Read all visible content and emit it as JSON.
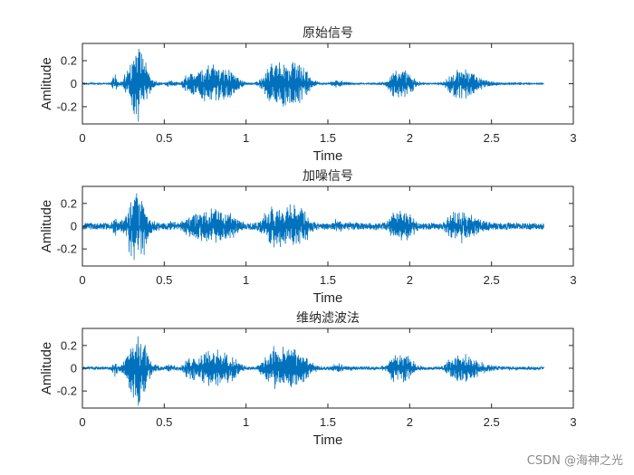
{
  "chart_data": [
    {
      "type": "line",
      "title": "原始信号",
      "xlabel": "Time",
      "ylabel": "Amlitude",
      "xlim": [
        0,
        3
      ],
      "ylim": [
        -0.35,
        0.35
      ],
      "xticks": [
        0,
        0.5,
        1,
        1.5,
        2,
        2.5,
        3
      ],
      "xtick_labels": [
        "0",
        "0.5",
        "1",
        "1.5",
        "2",
        "2.5",
        "3"
      ],
      "yticks": [
        -0.2,
        0,
        0.2
      ],
      "ytick_labels": [
        "-0.2",
        "0",
        "0.2"
      ],
      "color": "#0072bd",
      "grid": false,
      "signal_end": 2.82,
      "noise_floor": 0.004,
      "envelope_x": [
        0,
        0.17,
        0.2,
        0.22,
        0.25,
        0.28,
        0.3,
        0.33,
        0.35,
        0.38,
        0.4,
        0.43,
        0.46,
        0.5,
        0.53,
        0.6,
        0.63,
        0.7,
        0.75,
        0.8,
        0.85,
        0.9,
        0.95,
        1.0,
        1.05,
        1.1,
        1.15,
        1.2,
        1.25,
        1.3,
        1.35,
        1.4,
        1.45,
        1.5,
        1.55,
        1.6,
        1.65,
        1.7,
        1.75,
        1.8,
        1.85,
        1.9,
        1.95,
        2.0,
        2.05,
        2.1,
        2.15,
        2.2,
        2.25,
        2.3,
        2.35,
        2.4,
        2.45,
        2.5,
        2.55,
        2.82
      ],
      "envelope_y": [
        0.005,
        0.005,
        0.09,
        0.02,
        0.05,
        0.18,
        0.27,
        0.32,
        0.34,
        0.26,
        0.12,
        0.04,
        0.02,
        0.01,
        0.03,
        0.01,
        0.08,
        0.12,
        0.16,
        0.17,
        0.16,
        0.14,
        0.06,
        0.01,
        0.006,
        0.06,
        0.19,
        0.2,
        0.2,
        0.19,
        0.16,
        0.05,
        0.01,
        0.006,
        0.04,
        0.02,
        0.01,
        0.005,
        0.005,
        0.01,
        0.02,
        0.12,
        0.14,
        0.1,
        0.02,
        0.005,
        0.005,
        0.01,
        0.1,
        0.14,
        0.13,
        0.09,
        0.04,
        0.02,
        0.01,
        0.004
      ]
    },
    {
      "type": "line",
      "title": "加噪信号",
      "xlabel": "Time",
      "ylabel": "Amlitude",
      "xlim": [
        0,
        3
      ],
      "ylim": [
        -0.35,
        0.35
      ],
      "xticks": [
        0,
        0.5,
        1,
        1.5,
        2,
        2.5,
        3
      ],
      "xtick_labels": [
        "0",
        "0.5",
        "1",
        "1.5",
        "2",
        "2.5",
        "3"
      ],
      "yticks": [
        -0.2,
        0,
        0.2
      ],
      "ytick_labels": [
        "-0.2",
        "0",
        "0.2"
      ],
      "color": "#0072bd",
      "grid": false,
      "signal_end": 2.82,
      "noise_floor": 0.028,
      "envelope_x": [
        0,
        0.17,
        0.2,
        0.22,
        0.25,
        0.28,
        0.3,
        0.33,
        0.35,
        0.38,
        0.4,
        0.43,
        0.46,
        0.5,
        0.53,
        0.6,
        0.63,
        0.7,
        0.75,
        0.8,
        0.85,
        0.9,
        0.95,
        1.0,
        1.05,
        1.1,
        1.15,
        1.2,
        1.25,
        1.3,
        1.35,
        1.4,
        1.45,
        1.5,
        1.55,
        1.6,
        1.65,
        1.7,
        1.75,
        1.8,
        1.85,
        1.9,
        1.95,
        2.0,
        2.05,
        2.1,
        2.15,
        2.2,
        2.25,
        2.3,
        2.35,
        2.4,
        2.45,
        2.5,
        2.55,
        2.82
      ],
      "envelope_y": [
        0.005,
        0.005,
        0.09,
        0.02,
        0.05,
        0.18,
        0.27,
        0.32,
        0.34,
        0.26,
        0.12,
        0.04,
        0.02,
        0.01,
        0.03,
        0.01,
        0.08,
        0.12,
        0.16,
        0.17,
        0.16,
        0.14,
        0.06,
        0.01,
        0.006,
        0.06,
        0.19,
        0.2,
        0.2,
        0.19,
        0.16,
        0.05,
        0.01,
        0.006,
        0.04,
        0.02,
        0.01,
        0.005,
        0.005,
        0.01,
        0.02,
        0.12,
        0.14,
        0.1,
        0.02,
        0.005,
        0.005,
        0.01,
        0.1,
        0.14,
        0.13,
        0.09,
        0.04,
        0.02,
        0.01,
        0.004
      ]
    },
    {
      "type": "line",
      "title": "维纳滤波法",
      "xlabel": "Time",
      "ylabel": "Amlitude",
      "xlim": [
        0,
        3
      ],
      "ylim": [
        -0.35,
        0.35
      ],
      "xticks": [
        0,
        0.5,
        1,
        1.5,
        2,
        2.5,
        3
      ],
      "xtick_labels": [
        "0",
        "0.5",
        "1",
        "1.5",
        "2",
        "2.5",
        "3"
      ],
      "yticks": [
        -0.2,
        0,
        0.2
      ],
      "ytick_labels": [
        "-0.2",
        "0",
        "0.2"
      ],
      "color": "#0072bd",
      "grid": false,
      "signal_end": 2.82,
      "noise_floor": 0.012,
      "envelope_x": [
        0,
        0.17,
        0.2,
        0.22,
        0.25,
        0.28,
        0.3,
        0.33,
        0.35,
        0.38,
        0.4,
        0.43,
        0.46,
        0.5,
        0.53,
        0.6,
        0.63,
        0.7,
        0.75,
        0.8,
        0.85,
        0.9,
        0.95,
        1.0,
        1.05,
        1.1,
        1.15,
        1.2,
        1.25,
        1.3,
        1.35,
        1.4,
        1.45,
        1.5,
        1.55,
        1.6,
        1.65,
        1.7,
        1.75,
        1.8,
        1.85,
        1.9,
        1.95,
        2.0,
        2.05,
        2.1,
        2.15,
        2.2,
        2.25,
        2.3,
        2.35,
        2.4,
        2.45,
        2.5,
        2.55,
        2.82
      ],
      "envelope_y": [
        0.005,
        0.005,
        0.09,
        0.02,
        0.05,
        0.18,
        0.27,
        0.32,
        0.34,
        0.26,
        0.12,
        0.04,
        0.02,
        0.01,
        0.03,
        0.01,
        0.08,
        0.12,
        0.16,
        0.17,
        0.16,
        0.14,
        0.06,
        0.01,
        0.006,
        0.06,
        0.19,
        0.2,
        0.2,
        0.19,
        0.16,
        0.05,
        0.01,
        0.006,
        0.04,
        0.02,
        0.01,
        0.005,
        0.005,
        0.01,
        0.02,
        0.12,
        0.14,
        0.1,
        0.02,
        0.005,
        0.005,
        0.01,
        0.1,
        0.14,
        0.13,
        0.09,
        0.04,
        0.02,
        0.01,
        0.004
      ]
    }
  ],
  "watermark": "CSDN @海神之光"
}
